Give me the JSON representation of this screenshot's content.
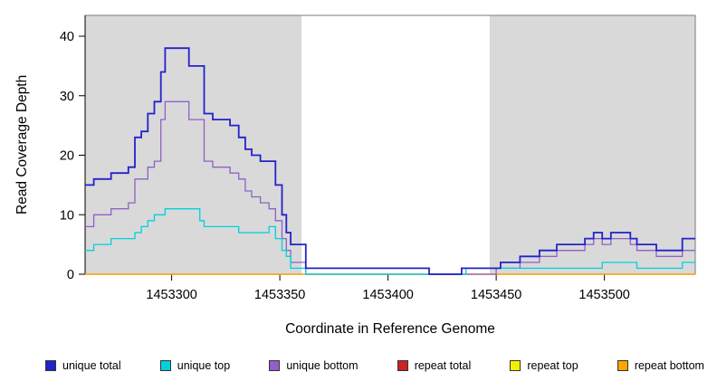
{
  "chart_data": {
    "type": "line",
    "style": "step",
    "title": "",
    "xlabel": "Coordinate in Reference Genome",
    "ylabel": "Read Coverage Depth",
    "xlim": [
      1453260,
      1453542
    ],
    "ylim": [
      0,
      40
    ],
    "xticks": [
      1453300,
      1453350,
      1453400,
      1453450,
      1453500
    ],
    "yticks": [
      0,
      10,
      20,
      30,
      40
    ],
    "grid": false,
    "legend_position": "bottom",
    "plot_background": "#ffffff",
    "shaded_region_color": "#d9d9d9",
    "shaded_regions": [
      {
        "from": 1453260,
        "to": 1453360
      },
      {
        "from": 1453447,
        "to": 1453542
      }
    ],
    "series": [
      {
        "name": "unique total",
        "color": "#2222cc",
        "points": [
          [
            1453260,
            15
          ],
          [
            1453264,
            16
          ],
          [
            1453272,
            17
          ],
          [
            1453280,
            18
          ],
          [
            1453283,
            23
          ],
          [
            1453286,
            24
          ],
          [
            1453289,
            27
          ],
          [
            1453292,
            29
          ],
          [
            1453295,
            34
          ],
          [
            1453297,
            38
          ],
          [
            1453308,
            35
          ],
          [
            1453315,
            27
          ],
          [
            1453319,
            26
          ],
          [
            1453327,
            25
          ],
          [
            1453331,
            23
          ],
          [
            1453334,
            21
          ],
          [
            1453337,
            20
          ],
          [
            1453341,
            19
          ],
          [
            1453348,
            15
          ],
          [
            1453351,
            10
          ],
          [
            1453353,
            7
          ],
          [
            1453355,
            5
          ],
          [
            1453362,
            1
          ],
          [
            1453419,
            0
          ],
          [
            1453434,
            1
          ],
          [
            1453452,
            2
          ],
          [
            1453461,
            3
          ],
          [
            1453470,
            4
          ],
          [
            1453478,
            5
          ],
          [
            1453491,
            6
          ],
          [
            1453495,
            7
          ],
          [
            1453499,
            6
          ],
          [
            1453503,
            7
          ],
          [
            1453512,
            6
          ],
          [
            1453515,
            5
          ],
          [
            1453524,
            4
          ],
          [
            1453536,
            6
          ]
        ]
      },
      {
        "name": "unique top",
        "color": "#00d2dc",
        "points": [
          [
            1453260,
            4
          ],
          [
            1453264,
            5
          ],
          [
            1453272,
            6
          ],
          [
            1453283,
            7
          ],
          [
            1453286,
            8
          ],
          [
            1453289,
            9
          ],
          [
            1453292,
            10
          ],
          [
            1453297,
            11
          ],
          [
            1453313,
            9
          ],
          [
            1453315,
            8
          ],
          [
            1453331,
            7
          ],
          [
            1453345,
            8
          ],
          [
            1453348,
            6
          ],
          [
            1453351,
            4
          ],
          [
            1453353,
            3
          ],
          [
            1453355,
            1
          ],
          [
            1453362,
            0
          ],
          [
            1453436,
            1
          ],
          [
            1453499,
            2
          ],
          [
            1453515,
            1
          ],
          [
            1453536,
            2
          ]
        ]
      },
      {
        "name": "unique bottom",
        "color": "#9060c8",
        "points": [
          [
            1453260,
            8
          ],
          [
            1453264,
            10
          ],
          [
            1453272,
            11
          ],
          [
            1453280,
            12
          ],
          [
            1453283,
            16
          ],
          [
            1453289,
            18
          ],
          [
            1453292,
            19
          ],
          [
            1453295,
            26
          ],
          [
            1453297,
            29
          ],
          [
            1453308,
            26
          ],
          [
            1453315,
            19
          ],
          [
            1453319,
            18
          ],
          [
            1453327,
            17
          ],
          [
            1453331,
            16
          ],
          [
            1453334,
            14
          ],
          [
            1453337,
            13
          ],
          [
            1453341,
            12
          ],
          [
            1453345,
            11
          ],
          [
            1453348,
            9
          ],
          [
            1453351,
            6
          ],
          [
            1453353,
            4
          ],
          [
            1453355,
            2
          ],
          [
            1453362,
            0
          ],
          [
            1453450,
            1
          ],
          [
            1453461,
            2
          ],
          [
            1453470,
            3
          ],
          [
            1453478,
            4
          ],
          [
            1453491,
            5
          ],
          [
            1453495,
            6
          ],
          [
            1453499,
            5
          ],
          [
            1453503,
            6
          ],
          [
            1453512,
            5
          ],
          [
            1453515,
            4
          ],
          [
            1453524,
            3
          ],
          [
            1453536,
            4
          ]
        ]
      },
      {
        "name": "repeat total",
        "color": "#cc2222",
        "points": [
          [
            1453260,
            0
          ]
        ]
      },
      {
        "name": "repeat top",
        "color": "#f2f200",
        "points": [
          [
            1453260,
            0
          ]
        ]
      },
      {
        "name": "repeat bottom",
        "color": "#ffa500",
        "points": [
          [
            1453260,
            0
          ]
        ]
      }
    ]
  }
}
